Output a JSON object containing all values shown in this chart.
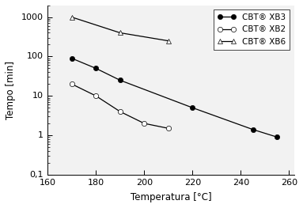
{
  "title": "",
  "xlabel": "Temperatura [°C]",
  "ylabel": "Tempo [min]",
  "xlim": [
    160,
    262
  ],
  "ylim": [
    0.1,
    2000
  ],
  "series": [
    {
      "label": "CBT® XB3",
      "x": [
        170,
        180,
        190,
        220,
        245,
        255
      ],
      "y": [
        90,
        50,
        25,
        5,
        1.4,
        0.9
      ],
      "marker": "o",
      "marker_fill": "black",
      "marker_edge": "black",
      "linestyle": "-",
      "color": "black",
      "markersize": 5
    },
    {
      "label": "CBT® XB2",
      "x": [
        170,
        180,
        190,
        200,
        210
      ],
      "y": [
        20,
        10,
        4,
        2,
        1.5
      ],
      "marker": "o",
      "marker_fill": "white",
      "marker_edge": "black",
      "linestyle": "-",
      "color": "black",
      "markersize": 5
    },
    {
      "label": "CBT® XB6",
      "x": [
        170,
        190,
        210
      ],
      "y": [
        1000,
        400,
        250
      ],
      "marker": "^",
      "marker_fill": "white",
      "marker_edge": "black",
      "linestyle": "-",
      "color": "black",
      "markersize": 5
    }
  ],
  "xticks": [
    160,
    180,
    200,
    220,
    240,
    260
  ],
  "yticks_major": [
    0.1,
    1,
    10,
    100,
    1000
  ],
  "ytick_labels": [
    "0,1",
    "1",
    "10",
    "100",
    "1000"
  ],
  "legend_loc": "upper right",
  "figsize": [
    3.83,
    2.63
  ],
  "dpi": 100,
  "bg_color": "#f0f0f0"
}
